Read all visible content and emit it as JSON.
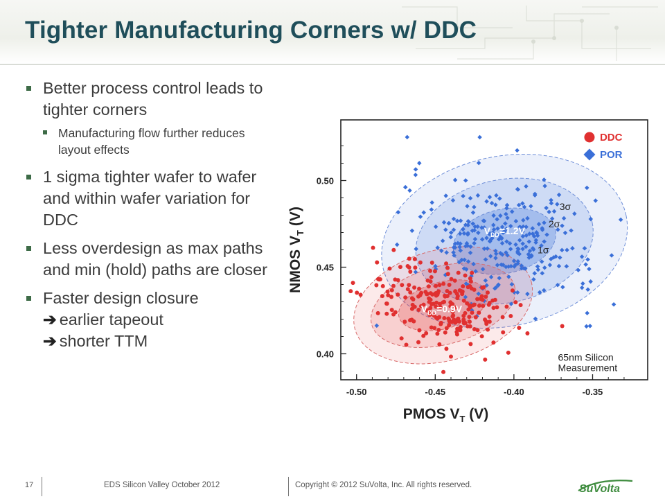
{
  "slide": {
    "title": "Tighter Manufacturing Corners w/ DDC",
    "bullets": [
      {
        "text": "Better process control leads to tighter corners",
        "sub": [
          "Manufacturing flow further reduces layout effects"
        ]
      },
      {
        "text": "1 sigma tighter wafer to wafer and within wafer variation for DDC"
      },
      {
        "text": "Less overdesign as max paths and min (hold) paths are closer"
      },
      {
        "text": "Faster design closure",
        "lines": [
          "earlier tapeout",
          "shorter TTM"
        ]
      }
    ]
  },
  "footer": {
    "page_number": "17",
    "event": "EDS Silicon Valley October 2012",
    "copyright": "Copyright © 2012 SuVolta, Inc. All rights reserved.",
    "logo_text": "SuVolta"
  },
  "chart_data": {
    "type": "scatter",
    "xlabel": "PMOS V",
    "xlabel_sub": "T",
    "xlabel_unit": " (V)",
    "ylabel": "NMOS V",
    "ylabel_sub": "T",
    "ylabel_unit": " (V)",
    "xlim": [
      -0.51,
      -0.315
    ],
    "ylim": [
      0.385,
      0.535
    ],
    "xticks": [
      -0.5,
      -0.45,
      -0.4,
      -0.35
    ],
    "xtick_labels": [
      "-0.50",
      "-0.45",
      "-0.40",
      "-0.35"
    ],
    "yticks": [
      0.4,
      0.45,
      0.5
    ],
    "ytick_labels": [
      "0.40",
      "0.45",
      "0.50"
    ],
    "legend": {
      "placement": "top-right",
      "entries": [
        {
          "name": "DDC",
          "color": "#e03030",
          "marker": "circle"
        },
        {
          "name": "POR",
          "color": "#3a6fd8",
          "marker": "diamond"
        }
      ]
    },
    "series": [
      {
        "name": "DDC",
        "color": "#e03030",
        "center": [
          -0.445,
          0.428
        ],
        "sigma_ellipses": [
          {
            "level": "1σ",
            "rx": 0.029,
            "ry": 0.0135,
            "angle": -15
          },
          {
            "level": "2σ",
            "rx": 0.047,
            "ry": 0.0225,
            "angle": -15
          },
          {
            "level": "3σ",
            "rx": 0.058,
            "ry": 0.032,
            "angle": -15
          }
        ],
        "cluster_label": "V",
        "cluster_label_sub": "DD",
        "cluster_label_rest": "=0.9V"
      },
      {
        "name": "POR",
        "color": "#3a6fd8",
        "center": [
          -0.406,
          0.465
        ],
        "sigma_ellipses": [
          {
            "level": "1σ",
            "rx": 0.033,
            "ry": 0.0185,
            "angle": -12
          },
          {
            "level": "2σ",
            "rx": 0.057,
            "ry": 0.0355,
            "angle": -12
          },
          {
            "level": "3σ",
            "rx": 0.079,
            "ry": 0.049,
            "angle": -12
          }
        ],
        "cluster_label": "V",
        "cluster_label_sub": "DD",
        "cluster_label_rest": "=1.2V"
      }
    ],
    "sigma_labels": [
      "1σ",
      "2σ",
      "3σ"
    ],
    "annotation": [
      "65nm Silicon",
      "Measurement"
    ]
  },
  "colors": {
    "title": "#1f4e5a",
    "bullet_mark": "#3d6b47",
    "ddc": "#e03030",
    "por": "#3a6fd8",
    "logo_green": "#3d8b3d"
  }
}
